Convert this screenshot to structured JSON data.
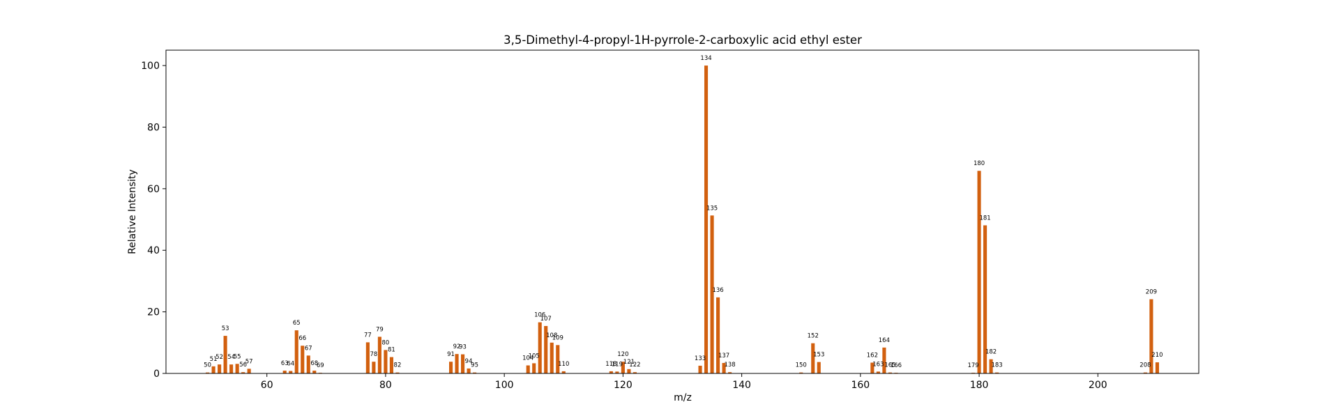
{
  "chart_data": {
    "type": "bar",
    "title": "3,5-Dimethyl-4-propyl-1H-pyrrole-2-carboxylic acid ethyl ester",
    "xlabel": "m/z",
    "ylabel": "Relative Intensity",
    "xlim": [
      43,
      217
    ],
    "ylim": [
      0,
      105
    ],
    "xticks": [
      60,
      80,
      100,
      120,
      140,
      160,
      180,
      200
    ],
    "yticks": [
      0,
      20,
      40,
      60,
      80,
      100
    ],
    "grid": false,
    "bar_color": "#d2600f",
    "peaks": [
      {
        "mz": 50,
        "intensity": 0.3
      },
      {
        "mz": 51,
        "intensity": 2.3
      },
      {
        "mz": 52,
        "intensity": 2.9
      },
      {
        "mz": 53,
        "intensity": 12.2
      },
      {
        "mz": 54,
        "intensity": 2.9
      },
      {
        "mz": 55,
        "intensity": 3.1
      },
      {
        "mz": 56,
        "intensity": 0.4
      },
      {
        "mz": 57,
        "intensity": 1.5
      },
      {
        "mz": 63,
        "intensity": 0.9
      },
      {
        "mz": 64,
        "intensity": 0.8
      },
      {
        "mz": 65,
        "intensity": 14.0
      },
      {
        "mz": 66,
        "intensity": 9.0
      },
      {
        "mz": 67,
        "intensity": 5.8
      },
      {
        "mz": 68,
        "intensity": 0.9
      },
      {
        "mz": 69,
        "intensity": 0.2
      },
      {
        "mz": 77,
        "intensity": 10.1
      },
      {
        "mz": 78,
        "intensity": 3.8
      },
      {
        "mz": 79,
        "intensity": 11.9
      },
      {
        "mz": 80,
        "intensity": 7.6
      },
      {
        "mz": 81,
        "intensity": 5.3
      },
      {
        "mz": 82,
        "intensity": 0.3
      },
      {
        "mz": 91,
        "intensity": 3.8
      },
      {
        "mz": 92,
        "intensity": 6.3
      },
      {
        "mz": 93,
        "intensity": 6.2
      },
      {
        "mz": 94,
        "intensity": 1.6
      },
      {
        "mz": 95,
        "intensity": 0.3
      },
      {
        "mz": 104,
        "intensity": 2.6
      },
      {
        "mz": 105,
        "intensity": 3.3
      },
      {
        "mz": 106,
        "intensity": 16.6
      },
      {
        "mz": 107,
        "intensity": 15.4
      },
      {
        "mz": 108,
        "intensity": 10.0
      },
      {
        "mz": 109,
        "intensity": 9.2
      },
      {
        "mz": 110,
        "intensity": 0.7
      },
      {
        "mz": 118,
        "intensity": 0.7
      },
      {
        "mz": 119,
        "intensity": 0.6
      },
      {
        "mz": 120,
        "intensity": 3.8
      },
      {
        "mz": 121,
        "intensity": 1.4
      },
      {
        "mz": 122,
        "intensity": 0.4
      },
      {
        "mz": 133,
        "intensity": 2.5
      },
      {
        "mz": 134,
        "intensity": 100.0
      },
      {
        "mz": 135,
        "intensity": 51.3
      },
      {
        "mz": 136,
        "intensity": 24.7
      },
      {
        "mz": 137,
        "intensity": 3.4
      },
      {
        "mz": 138,
        "intensity": 0.4
      },
      {
        "mz": 150,
        "intensity": 0.3
      },
      {
        "mz": 152,
        "intensity": 9.8
      },
      {
        "mz": 153,
        "intensity": 3.7
      },
      {
        "mz": 162,
        "intensity": 3.5
      },
      {
        "mz": 163,
        "intensity": 0.6
      },
      {
        "mz": 164,
        "intensity": 8.4
      },
      {
        "mz": 165,
        "intensity": 0.3
      },
      {
        "mz": 166,
        "intensity": 0.2
      },
      {
        "mz": 179,
        "intensity": 0.2
      },
      {
        "mz": 180,
        "intensity": 65.8
      },
      {
        "mz": 181,
        "intensity": 48.1
      },
      {
        "mz": 182,
        "intensity": 4.6
      },
      {
        "mz": 183,
        "intensity": 0.3
      },
      {
        "mz": 208,
        "intensity": 0.3
      },
      {
        "mz": 209,
        "intensity": 24.1
      },
      {
        "mz": 210,
        "intensity": 3.6
      }
    ]
  }
}
